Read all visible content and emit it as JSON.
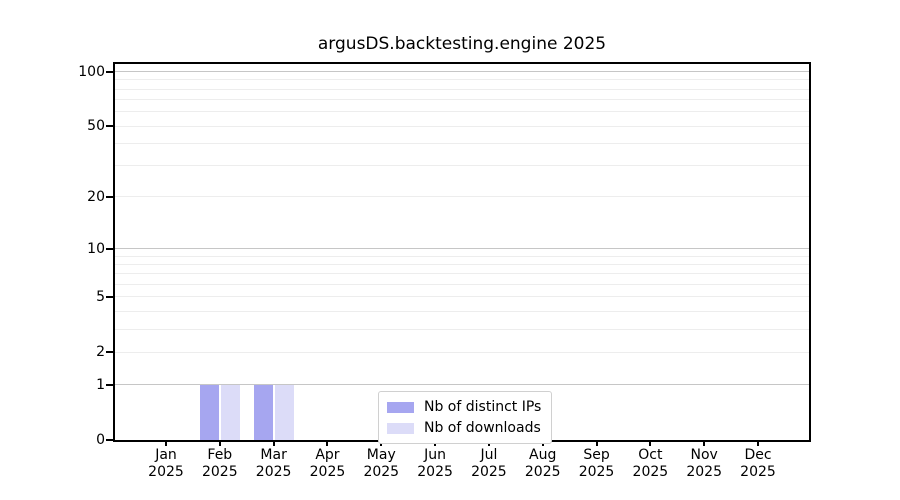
{
  "title": "argusDS.backtesting.engine 2025",
  "chart_data": {
    "type": "bar",
    "title": "argusDS.backtesting.engine 2025",
    "categories": [
      "Jan",
      "Feb",
      "Mar",
      "Apr",
      "May",
      "Jun",
      "Jul",
      "Aug",
      "Sep",
      "Oct",
      "Nov",
      "Dec"
    ],
    "category_subline": "2025",
    "series": [
      {
        "name": "Nb of distinct IPs",
        "color": "#a6a6f0",
        "values": [
          0,
          1,
          1,
          0,
          0,
          0,
          0,
          0,
          0,
          0,
          0,
          0
        ]
      },
      {
        "name": "Nb of downloads",
        "color": "#dcdcf8",
        "values": [
          0,
          1,
          1,
          0,
          0,
          0,
          0,
          0,
          0,
          0,
          0,
          0
        ]
      }
    ],
    "y_scale": "log10(1+y)",
    "ylim": [
      0,
      110
    ],
    "y_major_ticks": [
      0,
      1,
      2,
      5,
      10,
      20,
      50,
      100
    ],
    "y_major_gridlines": [
      1,
      10,
      100
    ],
    "y_minor_gridlines": [
      2,
      3,
      4,
      5,
      6,
      7,
      8,
      9,
      20,
      30,
      40,
      50,
      60,
      70,
      80,
      90
    ],
    "grid": true,
    "legend_position": "lower-center"
  },
  "colors": {
    "bar_distinct_ips": "#a6a6f0",
    "bar_downloads": "#dcdcf8",
    "grid_minor": "#ededed",
    "grid_major": "#c6c6c6",
    "spine": "#000000",
    "text": "#000000",
    "background": "#ffffff",
    "legend_border": "#d0d0d0"
  }
}
